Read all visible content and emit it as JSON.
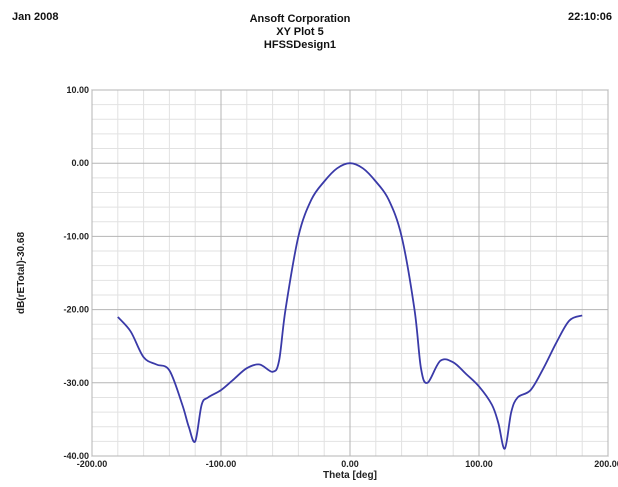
{
  "header": {
    "date": "Jan 2008",
    "company": "Ansoft Corporation",
    "plot_name": "XY Plot 5",
    "design": "HFSSDesign1",
    "time": "22:10:06"
  },
  "chart_data": {
    "type": "line",
    "title": "XY Plot 5",
    "xlabel": "Theta [deg]",
    "ylabel": "dB(rETotal)-30.68",
    "xlim": [
      -200,
      200
    ],
    "ylim": [
      -40,
      10
    ],
    "x_ticks": [
      -200,
      -100,
      0,
      100,
      200
    ],
    "x_tick_labels": [
      "-200.00",
      "-100.00",
      "0.00",
      "100.00",
      "200.00"
    ],
    "y_ticks": [
      -40,
      -30,
      -20,
      -10,
      0,
      10
    ],
    "y_tick_labels": [
      "-40.00",
      "-30.00",
      "-20.00",
      "-10.00",
      "0.00",
      "10.00"
    ],
    "grid": true,
    "series_color": "#3a3aa8",
    "series": [
      {
        "name": "",
        "x": [
          -180,
          -170,
          -160,
          -150,
          -140,
          -130,
          -125,
          -120,
          -115,
          -110,
          -100,
          -90,
          -80,
          -70,
          -60,
          -55,
          -50,
          -40,
          -30,
          -20,
          -10,
          0,
          10,
          20,
          30,
          40,
          50,
          55,
          60,
          70,
          80,
          90,
          100,
          110,
          115,
          120,
          125,
          130,
          140,
          150,
          160,
          170,
          180
        ],
        "y": [
          -21,
          -23,
          -26.5,
          -27.5,
          -28.3,
          -33,
          -36,
          -38,
          -33,
          -32,
          -31,
          -29.5,
          -28,
          -27.5,
          -28.5,
          -27,
          -20,
          -10,
          -5,
          -2.5,
          -0.7,
          0,
          -0.7,
          -2.5,
          -5,
          -10,
          -20,
          -28,
          -30,
          -27,
          -27.2,
          -28.8,
          -30.5,
          -33,
          -35.5,
          -39,
          -34,
          -32,
          -31,
          -28,
          -24.5,
          -21.5,
          -20.8
        ]
      }
    ]
  }
}
